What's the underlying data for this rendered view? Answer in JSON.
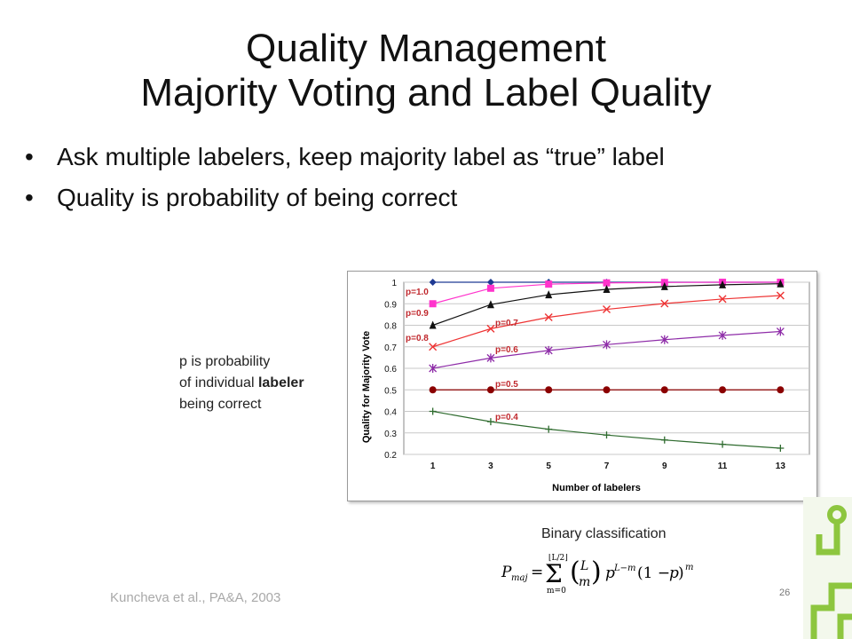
{
  "slide": {
    "title_line1": "Quality Management",
    "title_line2": "Majority Voting and Label Quality",
    "bullets": [
      "Ask multiple labelers, keep majority label as “true” label",
      "Quality is probability of being correct"
    ],
    "note_line1": "p is probability",
    "note_line2_pre": "of individual ",
    "note_line2_bold": "labeler",
    "note_line3": "being correct",
    "formula_caption": "Binary classification",
    "citation": "Kuncheva et al., PA&A, 2003",
    "page_number": "26"
  },
  "chart_data": {
    "type": "line",
    "xlabel": "Number of labelers",
    "ylabel": "Quality for Majority Vote",
    "x": [
      1,
      3,
      5,
      7,
      9,
      11,
      13
    ],
    "ylim": [
      0.2,
      1.0
    ],
    "yticks": [
      0.2,
      0.3,
      0.4,
      0.5,
      0.6,
      0.7,
      0.8,
      0.9,
      1
    ],
    "grid": true,
    "series": [
      {
        "name": "p=1.0",
        "color": "#1f3a93",
        "marker": "diamond",
        "values": [
          1.0,
          1.0,
          1.0,
          1.0,
          1.0,
          1.0,
          1.0
        ]
      },
      {
        "name": "p=0.9",
        "color": "#ff33cc",
        "marker": "square",
        "values": [
          0.9,
          0.972,
          0.991,
          0.997,
          0.999,
          1.0,
          1.0
        ]
      },
      {
        "name": "p=0.8",
        "color": "#111111",
        "marker": "triangle",
        "values": [
          0.8,
          0.896,
          0.942,
          0.967,
          0.98,
          0.988,
          0.993
        ]
      },
      {
        "name": "p=0.7",
        "color": "#ee3333",
        "marker": "x",
        "values": [
          0.7,
          0.784,
          0.837,
          0.874,
          0.901,
          0.922,
          0.938
        ]
      },
      {
        "name": "p=0.6",
        "color": "#8e2ca8",
        "marker": "star",
        "values": [
          0.6,
          0.648,
          0.683,
          0.71,
          0.733,
          0.753,
          0.771
        ]
      },
      {
        "name": "p=0.5",
        "color": "#8b0000",
        "marker": "circle",
        "values": [
          0.5,
          0.5,
          0.5,
          0.5,
          0.5,
          0.5,
          0.5
        ]
      },
      {
        "name": "p=0.4",
        "color": "#2e6b2e",
        "marker": "plus",
        "values": [
          0.4,
          0.352,
          0.317,
          0.29,
          0.267,
          0.247,
          0.229
        ]
      }
    ]
  },
  "decor": {
    "accent": "#8dc63f"
  }
}
